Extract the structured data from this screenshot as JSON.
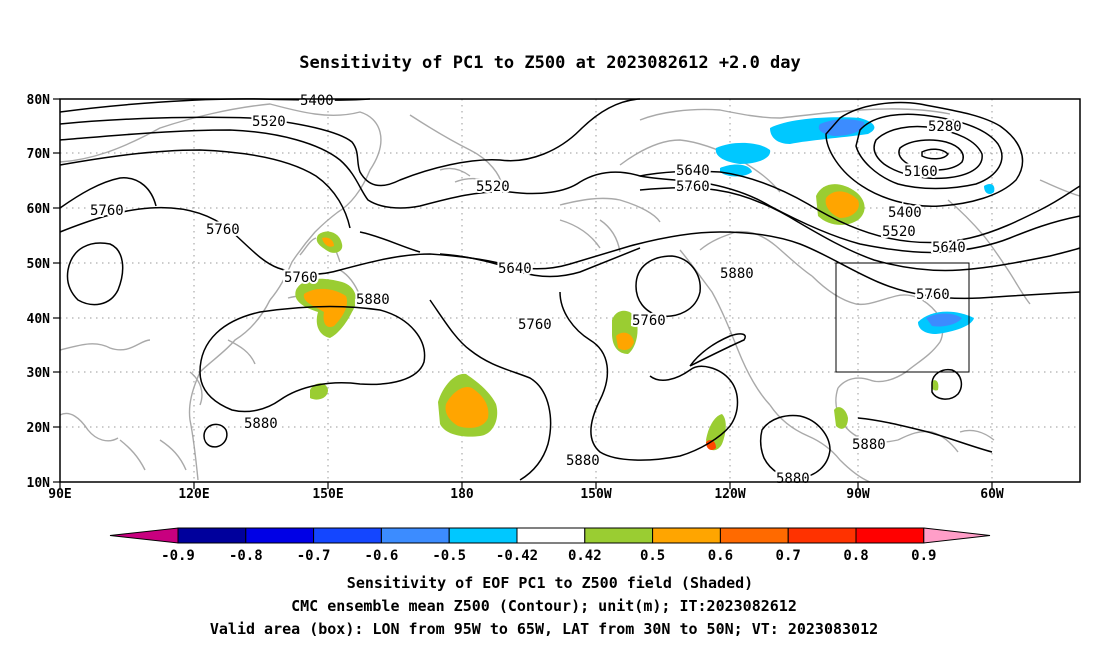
{
  "title": "Sensitivity of PC1 to Z500 at 2023082612 +2.0 day",
  "lon_ticks": [
    "90E",
    "120E",
    "150E",
    "180",
    "150W",
    "120W",
    "90W",
    "60W"
  ],
  "lat_ticks": [
    "80N",
    "70N",
    "60N",
    "50N",
    "40N",
    "30N",
    "20N",
    "10N"
  ],
  "contour_labels": [
    "5400",
    "5520",
    "5280",
    "5160",
    "5520",
    "5640",
    "5760",
    "5400",
    "5520",
    "5640",
    "5760",
    "5760",
    "5760",
    "5880",
    "5640",
    "5760",
    "5760",
    "5880",
    "5880",
    "5880",
    "5880",
    "5880",
    "5760"
  ],
  "colorbar": {
    "labels": [
      "-0.9",
      "-0.8",
      "-0.7",
      "-0.6",
      "-0.5",
      "-0.42",
      "0.42",
      "0.5",
      "0.6",
      "0.7",
      "0.8",
      "0.9"
    ],
    "colors": [
      "#c8007f",
      "#00009c",
      "#0000e6",
      "#1446ff",
      "#3c8cff",
      "#00c8ff",
      "#ffffff",
      "#9acd32",
      "#ffa500",
      "#ff6a00",
      "#ff3200",
      "#ff0000",
      "#ff9ec8"
    ]
  },
  "captions": [
    "Sensitivity of EOF PC1 to Z500 field (Shaded)",
    "CMC ensemble mean Z500 (Contour); unit(m); IT:2023082612",
    "Valid area (box): LON from 95W to 65W, LAT from 30N to 50N; VT: 2023083012"
  ],
  "valid_box": {
    "lon_min": -95,
    "lon_max": -65,
    "lat_min": 30,
    "lat_max": 50
  }
}
